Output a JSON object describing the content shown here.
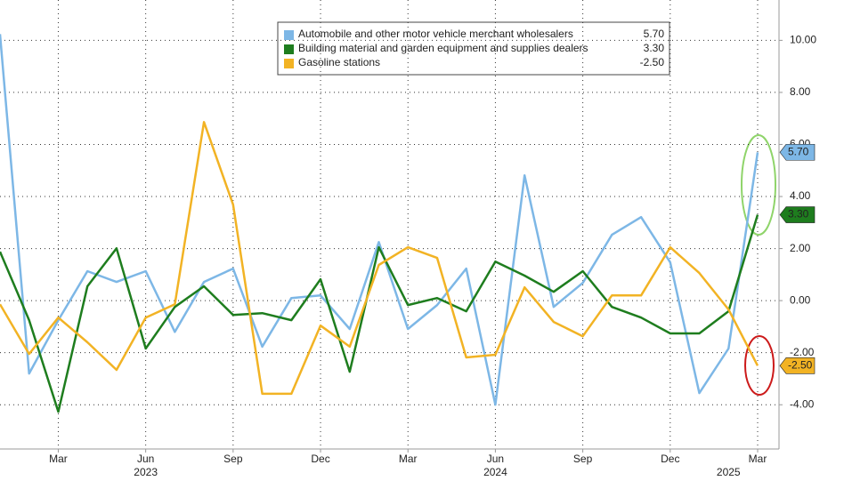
{
  "chart_data": {
    "type": "line",
    "x": [
      "2023-01",
      "2023-02",
      "2023-03",
      "2023-04",
      "2023-05",
      "2023-06",
      "2023-07",
      "2023-08",
      "2023-09",
      "2023-10",
      "2023-11",
      "2023-12",
      "2024-01",
      "2024-02",
      "2024-03",
      "2024-04",
      "2024-05",
      "2024-06",
      "2024-07",
      "2024-08",
      "2024-09",
      "2024-10",
      "2024-11",
      "2024-12",
      "2025-01",
      "2025-02",
      "2025-03"
    ],
    "xticks": [
      {
        "value": "2023-03",
        "label": "Mar"
      },
      {
        "value": "2023-06",
        "label": "Jun"
      },
      {
        "value": "2023-09",
        "label": "Sep"
      },
      {
        "value": "2023-12",
        "label": "Dec"
      },
      {
        "value": "2024-03",
        "label": "Mar"
      },
      {
        "value": "2024-06",
        "label": "Jun"
      },
      {
        "value": "2024-09",
        "label": "Sep"
      },
      {
        "value": "2024-12",
        "label": "Dec"
      },
      {
        "value": "2025-03",
        "label": "Mar"
      }
    ],
    "year_ticks": [
      {
        "value": "2023-06",
        "label": "2023"
      },
      {
        "value": "2024-06",
        "label": "2024"
      },
      {
        "value": "2025-02",
        "label": "2025"
      }
    ],
    "ylim": [
      -5.7,
      11.55
    ],
    "yticks": [
      {
        "value": -4,
        "label": "-4.00"
      },
      {
        "value": -2,
        "label": "-2.00"
      },
      {
        "value": 0,
        "label": "0.00"
      },
      {
        "value": 2,
        "label": "2.00"
      },
      {
        "value": 4,
        "label": "4.00"
      },
      {
        "value": 6,
        "label": "6.00"
      },
      {
        "value": 8,
        "label": "8.00"
      },
      {
        "value": 10,
        "label": "10.00"
      }
    ],
    "grid": true,
    "series": [
      {
        "name": "Automobile and other motor vehicle merchant wholesalers",
        "color": "#7db7e6",
        "text_color": "#1a2a3a",
        "values": [
          10.24,
          -2.8,
          -0.75,
          1.13,
          0.72,
          1.13,
          -1.2,
          0.72,
          1.23,
          -1.77,
          0.1,
          0.2,
          -1.09,
          2.25,
          -1.09,
          -0.17,
          1.23,
          -4.0,
          4.81,
          -0.24,
          0.68,
          2.53,
          3.21,
          1.47,
          -3.55,
          -1.84,
          5.7
        ],
        "value_labels": [
          null,
          null,
          null,
          null,
          null,
          null,
          null,
          null,
          null,
          null,
          null,
          null,
          null,
          null,
          null,
          null,
          null,
          null,
          null,
          null,
          null,
          null,
          null,
          null,
          null,
          null,
          "5.70"
        ]
      },
      {
        "name": "Building material and garden equipment and supplies dealers",
        "color": "#1e7d1e",
        "text_color": "#ffffff",
        "values": [
          1.88,
          -0.75,
          -4.27,
          0.55,
          2.01,
          -1.84,
          -0.24,
          0.55,
          -0.55,
          -0.48,
          -0.75,
          0.82,
          -2.73,
          2.05,
          -0.17,
          0.1,
          -0.41,
          1.5,
          0.96,
          0.34,
          1.13,
          -0.24,
          -0.65,
          -1.26,
          -1.26,
          -0.41,
          3.3
        ],
        "value_labels": [
          null,
          null,
          null,
          null,
          null,
          null,
          null,
          null,
          null,
          null,
          null,
          null,
          null,
          null,
          null,
          null,
          null,
          null,
          null,
          null,
          null,
          null,
          null,
          null,
          null,
          null,
          "3.30"
        ]
      },
      {
        "name": "Gasoline stations",
        "color": "#f2b324",
        "text_color": "#1a1a1a",
        "values": [
          -0.14,
          -2.05,
          -0.65,
          -1.6,
          -2.66,
          -0.65,
          -0.14,
          6.86,
          3.69,
          -3.58,
          -3.58,
          -0.96,
          -1.77,
          1.37,
          2.05,
          1.64,
          -2.18,
          -2.08,
          0.51,
          -0.82,
          -1.37,
          0.2,
          0.2,
          2.05,
          1.06,
          -0.34,
          -2.5
        ],
        "value_labels": [
          null,
          null,
          null,
          null,
          null,
          null,
          null,
          null,
          null,
          null,
          null,
          null,
          null,
          null,
          null,
          null,
          null,
          null,
          null,
          null,
          null,
          null,
          null,
          null,
          null,
          null,
          "-2.50"
        ]
      }
    ]
  }
}
